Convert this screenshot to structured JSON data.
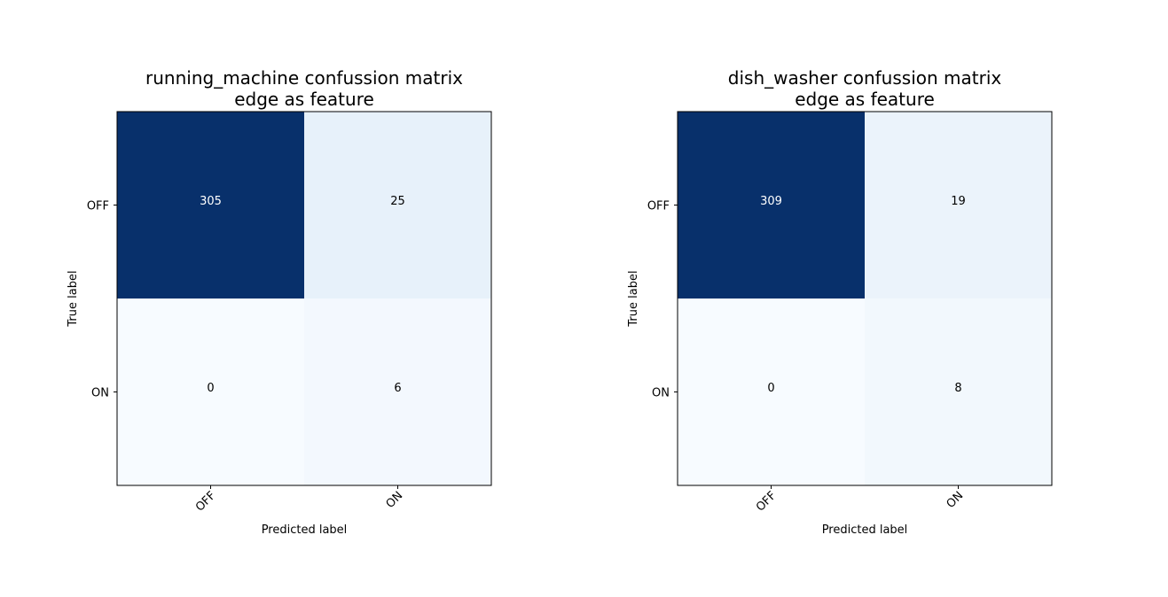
{
  "chart_data": [
    {
      "type": "heatmap",
      "title_line1": "running_machine confussion matrix",
      "title_line2": "edge as feature",
      "xlabel": "Predicted label",
      "ylabel": "True label",
      "x_categories": [
        "OFF",
        "ON"
      ],
      "y_categories": [
        "OFF",
        "ON"
      ],
      "values": [
        [
          305,
          25
        ],
        [
          0,
          6
        ]
      ],
      "colormap": "Blues",
      "grid": false
    },
    {
      "type": "heatmap",
      "title_line1": "dish_washer confussion matrix",
      "title_line2": "edge as feature",
      "xlabel": "Predicted label",
      "ylabel": "True label",
      "x_categories": [
        "OFF",
        "ON"
      ],
      "y_categories": [
        "OFF",
        "ON"
      ],
      "values": [
        [
          309,
          19
        ],
        [
          0,
          8
        ]
      ],
      "colormap": "Blues",
      "grid": false
    }
  ]
}
